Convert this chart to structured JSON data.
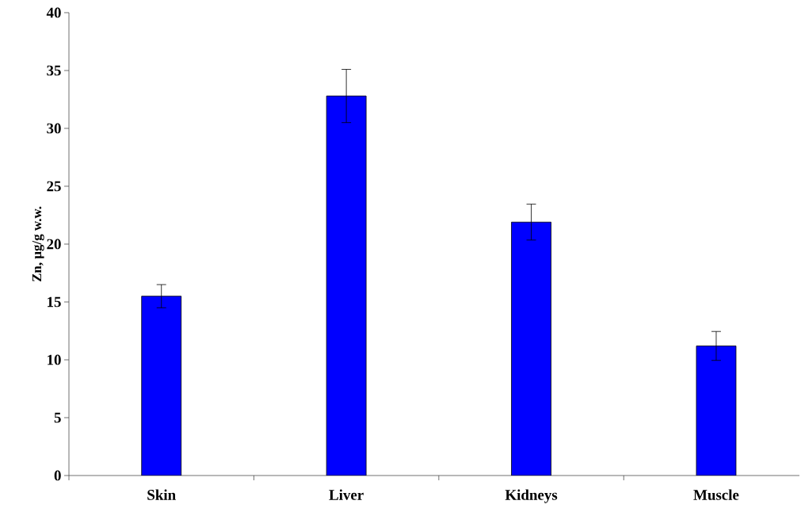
{
  "chart_data": {
    "type": "bar",
    "ylabel": "Zn, µg/g w.w.",
    "categories": [
      "Skin",
      "Liver",
      "Kidneys",
      "Muscle"
    ],
    "values": [
      15.5,
      32.8,
      21.9,
      11.2
    ],
    "errors": [
      1.0,
      2.3,
      1.55,
      1.25
    ],
    "color": "#0000ff",
    "ylim": [
      0,
      40
    ],
    "yticks": [
      0,
      5,
      10,
      15,
      20,
      25,
      30,
      35,
      40
    ],
    "grid": false
  }
}
